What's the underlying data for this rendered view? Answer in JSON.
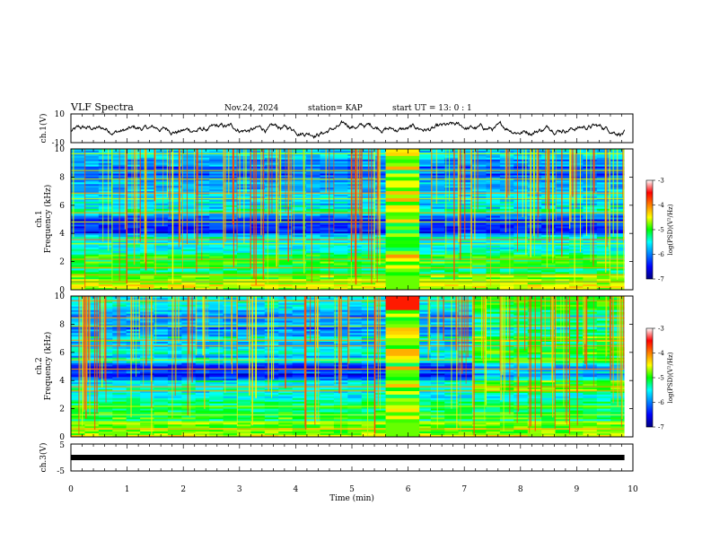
{
  "header": {
    "title": "VLF Spectra",
    "date": "Nov.24, 2024",
    "station": "station= KAP",
    "start": "start  UT =   13: 0  : 1"
  },
  "chart_data": [
    {
      "type": "line",
      "ylabel": "ch.1(V)",
      "ylim": [
        -10,
        10
      ],
      "yticks": [
        "10",
        "-10"
      ],
      "color": "#000000"
    },
    {
      "type": "heatmap",
      "ylabel_channel": "ch.1",
      "ylabel": "Frequency (kHz)",
      "ylim": [
        0,
        10
      ],
      "yticks": [
        "0",
        "2",
        "4",
        "6",
        "8",
        "10"
      ],
      "burst_time_min": [
        5.6,
        6.2
      ],
      "colorbar": {
        "label": "log(PSD)(V²/Hz)",
        "range": [
          -7,
          -3
        ],
        "ticks": [
          "-3",
          "-4",
          "-5",
          "-6",
          "-7"
        ]
      }
    },
    {
      "type": "heatmap",
      "ylabel_channel": "ch.2",
      "ylabel": "Frequency (kHz)",
      "ylim": [
        0,
        10
      ],
      "yticks": [
        "0",
        "2",
        "4",
        "6",
        "8",
        "10"
      ],
      "burst_time_min": [
        5.6,
        6.2
      ],
      "colorbar": {
        "label": "log(PSD)(V²/Hz)",
        "range": [
          -7,
          -3
        ],
        "ticks": [
          "-3",
          "-4",
          "-5",
          "-6",
          "-7"
        ]
      }
    },
    {
      "type": "line",
      "ylabel": "ch.3(V)",
      "ylim": [
        -5,
        5
      ],
      "yticks": [
        "5",
        "-5"
      ],
      "constant_value": 0,
      "color": "#000000"
    }
  ],
  "xaxis": {
    "xlabel": "Time (min)",
    "xlim": [
      0,
      10
    ],
    "ticks": [
      "0",
      "1",
      "2",
      "3",
      "4",
      "5",
      "6",
      "7",
      "8",
      "9",
      "10"
    ],
    "data_end_min": 9.85
  }
}
